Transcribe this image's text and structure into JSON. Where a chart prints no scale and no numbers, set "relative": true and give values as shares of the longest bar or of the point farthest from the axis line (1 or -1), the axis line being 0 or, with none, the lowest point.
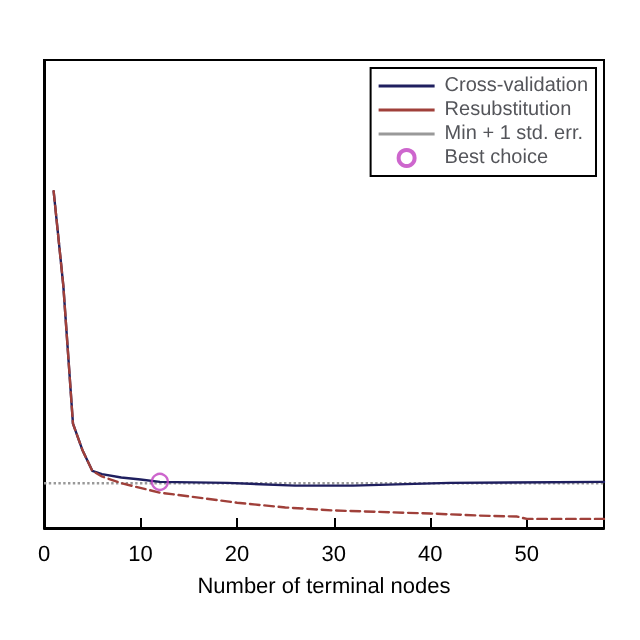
{
  "chart_data": {
    "type": "line",
    "xlabel": "Number of terminal nodes",
    "relative": true,
    "xlim": [
      0,
      58
    ],
    "xticks": [
      0,
      10,
      20,
      30,
      40,
      50
    ],
    "legend": "top right",
    "grid": false,
    "series": [
      {
        "name": "Cross-validation",
        "color": "#1f1f5f",
        "line_style": "solid",
        "marker": "none",
        "x": [
          1,
          2,
          3,
          4,
          5,
          6,
          8,
          10,
          12,
          19,
          26,
          32,
          42,
          58
        ],
        "values": [
          1.0,
          0.72,
          0.31,
          0.23,
          0.17,
          0.16,
          0.15,
          0.144,
          0.137,
          0.134,
          0.126,
          0.126,
          0.134,
          0.137
        ]
      },
      {
        "name": "Resubstitution",
        "color": "#a0403a",
        "line_style": "dashed",
        "marker": "none",
        "x": [
          1,
          2,
          3,
          4,
          5,
          6,
          8,
          12,
          15,
          20,
          25,
          30,
          40,
          45,
          49,
          50,
          58
        ],
        "values": [
          1.0,
          0.72,
          0.31,
          0.23,
          0.17,
          0.153,
          0.133,
          0.105,
          0.094,
          0.075,
          0.061,
          0.052,
          0.043,
          0.037,
          0.034,
          0.027,
          0.027
        ]
      },
      {
        "name": "Best choice",
        "type": "scatter",
        "color": "#c040c0",
        "marker": "circle",
        "x": [
          12
        ],
        "values": [
          0.137
        ]
      }
    ],
    "ref_lines": [
      {
        "axis": "y",
        "value": 0.133,
        "label": "Min + 1 std. err.",
        "color": "#999999",
        "line_style": "dotted"
      }
    ]
  }
}
